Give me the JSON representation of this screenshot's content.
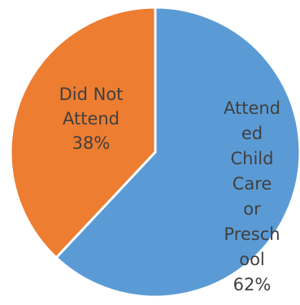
{
  "chart_data": {
    "type": "pie",
    "slices": [
      {
        "label_lines": [
          "Attend",
          "ed",
          "Child",
          "Care",
          "or",
          "Presch",
          "ool",
          "62%"
        ],
        "value": 62,
        "color": "#5b9bd5",
        "text_color": "#404040"
      },
      {
        "label_lines": [
          "Did Not",
          "Attend",
          "38%"
        ],
        "value": 38,
        "color": "#ed7d31",
        "text_color": "#404040"
      }
    ],
    "legend": "none"
  }
}
